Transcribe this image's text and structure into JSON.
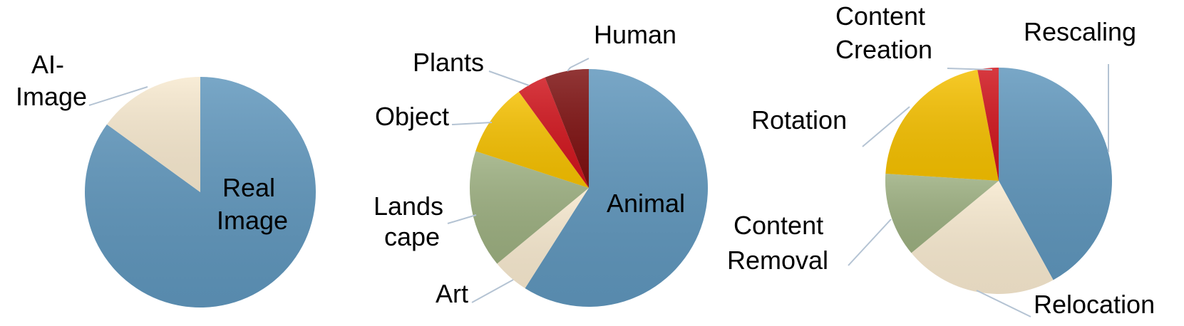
{
  "chart_data": [
    {
      "type": "pie",
      "title": "",
      "start": "12 o'clock",
      "direction": "clockwise",
      "slices": [
        {
          "label": "Real Image",
          "lines": [
            "Real",
            "Image"
          ],
          "value": 85,
          "color": "#5f96bc",
          "label_position": "inside"
        },
        {
          "label": "AI-Image",
          "lines": [
            "AI-",
            "Image"
          ],
          "value": 15,
          "color": "#f7e9cf",
          "label_position": "outside"
        }
      ]
    },
    {
      "type": "pie",
      "title": "",
      "start": "12 o'clock",
      "direction": "clockwise",
      "slices": [
        {
          "label": "Animal",
          "lines": [
            "Animal"
          ],
          "value": 59,
          "color": "#5f96bc",
          "label_position": "inside"
        },
        {
          "label": "Art",
          "lines": [
            "Art"
          ],
          "value": 5,
          "color": "#f7e9cf",
          "label_position": "outside"
        },
        {
          "label": "Landscape",
          "lines": [
            "Lands",
            "cape"
          ],
          "value": 16,
          "color": "#9caf80",
          "label_position": "outside"
        },
        {
          "label": "Object",
          "lines": [
            "Object"
          ],
          "value": 10,
          "color": "#f5c000",
          "label_position": "outside"
        },
        {
          "label": "Plants",
          "lines": [
            "Plants"
          ],
          "value": 4,
          "color": "#d0141c",
          "label_position": "outside"
        },
        {
          "label": "Human",
          "lines": [
            "Human"
          ],
          "value": 6,
          "color": "#7d1010",
          "label_position": "outside"
        }
      ]
    },
    {
      "type": "pie",
      "title": "",
      "start": "12 o'clock",
      "direction": "clockwise",
      "slices": [
        {
          "label": "Rescaling",
          "lines": [
            "Rescaling"
          ],
          "value": 42,
          "color": "#5f96bc",
          "label_position": "outside"
        },
        {
          "label": "Relocation",
          "lines": [
            "Relocation"
          ],
          "value": 22,
          "color": "#f7e9cf",
          "label_position": "outside"
        },
        {
          "label": "Content Removal",
          "lines": [
            "Content",
            "Removal"
          ],
          "value": 12,
          "color": "#9caf80",
          "label_position": "outside"
        },
        {
          "label": "Rotation",
          "lines": [
            "Rotation"
          ],
          "value": 21,
          "color": "#f5c000",
          "label_position": "outside"
        },
        {
          "label": "Content Creation",
          "lines": [
            "Content",
            "Creation"
          ],
          "value": 3,
          "color": "#d0141c",
          "label_position": "outside"
        }
      ]
    }
  ]
}
